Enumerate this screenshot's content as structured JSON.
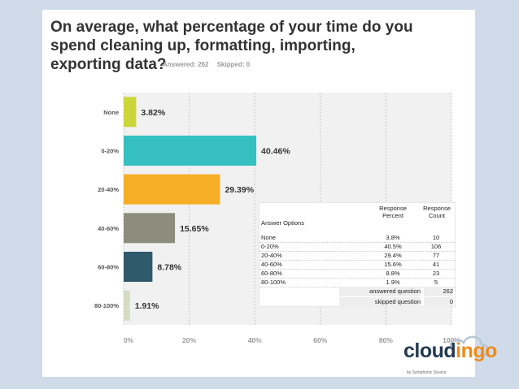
{
  "title": "On average, what percentage of your time do you spend cleaning up, formatting, importing, exporting data?",
  "answered_label": "Answered: 262",
  "skipped_label": "Skipped: 0",
  "chart_data": {
    "type": "bar",
    "orientation": "horizontal",
    "categories": [
      "None",
      "0-20%",
      "20-40%",
      "40-60%",
      "60-80%",
      "80-100%"
    ],
    "values": [
      3.82,
      40.46,
      29.39,
      15.65,
      8.78,
      1.91
    ],
    "value_labels": [
      "3.82%",
      "40.46%",
      "29.39%",
      "15.65%",
      "8.78%",
      "1.91%"
    ],
    "colors": [
      "#ccd63a",
      "#36bfc0",
      "#f5ae25",
      "#8e8c7c",
      "#2e5a6c",
      "#d6dbc5"
    ],
    "xlim": [
      0,
      100
    ],
    "xticks": [
      0,
      20,
      40,
      60,
      80,
      100
    ],
    "xtick_labels": [
      "0%",
      "20%",
      "40%",
      "60%",
      "80%",
      "100%"
    ],
    "grid": true
  },
  "table": {
    "headers": [
      "Answer Options",
      "Response Percent",
      "Response Count"
    ],
    "rows": [
      [
        "None",
        "3.8%",
        "10"
      ],
      [
        "0-20%",
        "40.5%",
        "106"
      ],
      [
        "20-40%",
        "29.4%",
        "77"
      ],
      [
        "40-60%",
        "15.6%",
        "41"
      ],
      [
        "60-80%",
        "8.8%",
        "23"
      ],
      [
        "80-100%",
        "1.9%",
        "5"
      ]
    ],
    "answered_label": "answered question",
    "answered_value": "262",
    "skipped_label": "skipped question",
    "skipped_value": "0"
  },
  "logo": {
    "part1": "cloud",
    "part2": "ingo",
    "tagline": "by Symphonic Source"
  }
}
